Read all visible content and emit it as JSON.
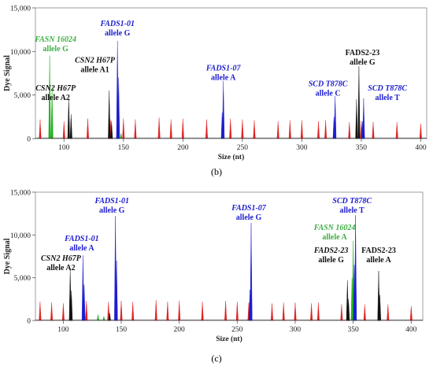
{
  "chart_data": [
    {
      "type": "line",
      "panel_label": "(b)",
      "xlabel": "Size (nt)",
      "ylabel": "Dye Signal",
      "xlim": [
        76,
        405
      ],
      "ylim": [
        0,
        15000
      ],
      "x_ticks": [
        100,
        150,
        200,
        250,
        300,
        350,
        400
      ],
      "y_ticks": [
        0,
        5000,
        10000,
        15000
      ],
      "y_tick_labels": [
        "0",
        "5,000",
        "10,000",
        "15,000"
      ],
      "grid": false,
      "series": [
        {
          "color": "#e02020",
          "width": 1.1,
          "peaks": [
            {
              "x": 80,
              "y": 2200
            },
            {
              "x": 90,
              "y": 2100
            },
            {
              "x": 100,
              "y": 2000
            },
            {
              "x": 120,
              "y": 2300
            },
            {
              "x": 139,
              "y": 2200
            },
            {
              "x": 150,
              "y": 2300
            },
            {
              "x": 160,
              "y": 2200
            },
            {
              "x": 180,
              "y": 2400
            },
            {
              "x": 190,
              "y": 2200
            },
            {
              "x": 200,
              "y": 2300
            },
            {
              "x": 220,
              "y": 2200
            },
            {
              "x": 240,
              "y": 2300
            },
            {
              "x": 250,
              "y": 2200
            },
            {
              "x": 260,
              "y": 2100
            },
            {
              "x": 280,
              "y": 2000
            },
            {
              "x": 290,
              "y": 2100
            },
            {
              "x": 300,
              "y": 2100
            },
            {
              "x": 314,
              "y": 2000
            },
            {
              "x": 320,
              "y": 2100
            },
            {
              "x": 340,
              "y": 1900
            },
            {
              "x": 350,
              "y": 2000
            },
            {
              "x": 360,
              "y": 1900
            },
            {
              "x": 380,
              "y": 1900
            },
            {
              "x": 400,
              "y": 1700
            }
          ]
        },
        {
          "color": "#22b022",
          "width": 1.4,
          "peaks": [
            {
              "x": 88,
              "y": 9500
            },
            {
              "x": 90,
              "y": 6000
            },
            {
              "x": 148,
              "y": 600
            }
          ]
        },
        {
          "color": "#111111",
          "width": 1.3,
          "peaks": [
            {
              "x": 104,
              "y": 4600
            },
            {
              "x": 106,
              "y": 2800
            },
            {
              "x": 138,
              "y": 5500
            },
            {
              "x": 140,
              "y": 2000
            },
            {
              "x": 145,
              "y": 1200
            },
            {
              "x": 348,
              "y": 8300
            },
            {
              "x": 346,
              "y": 4500
            }
          ]
        },
        {
          "color": "#1c1cd0",
          "width": 1.4,
          "peaks": [
            {
              "x": 145,
              "y": 11200
            },
            {
              "x": 146,
              "y": 7000
            },
            {
              "x": 234,
              "y": 6600
            },
            {
              "x": 233,
              "y": 3000
            },
            {
              "x": 328,
              "y": 4900
            },
            {
              "x": 327,
              "y": 2500
            },
            {
              "x": 352,
              "y": 4600
            },
            {
              "x": 351,
              "y": 2000
            }
          ]
        }
      ],
      "annotations": [
        {
          "lines": [
            "FASN 16024",
            "allele G"
          ],
          "italic_first": true,
          "color": "#3cb043",
          "x": 93,
          "y": 11100
        },
        {
          "lines": [
            "CSN2 H67P",
            "allele A1"
          ],
          "italic_first": true,
          "color": "#111111",
          "x": 126,
          "y": 8700
        },
        {
          "lines": [
            "CSN2 H67P",
            "allele A2"
          ],
          "italic_first": true,
          "color": "#111111",
          "x": 93,
          "y": 5500
        },
        {
          "lines": [
            "FADS1-01",
            "allele G"
          ],
          "italic_first": true,
          "color": "#1c1cd0",
          "x": 145,
          "y": 12900
        },
        {
          "lines": [
            "FADS1-07",
            "allele A"
          ],
          "italic_first": true,
          "color": "#1c1cd0",
          "x": 234,
          "y": 7800
        },
        {
          "lines": [
            "SCD T878C",
            "allele C"
          ],
          "italic_first": true,
          "color": "#1c1cd0",
          "x": 322,
          "y": 6000
        },
        {
          "lines": [
            "FADS2-23",
            "allele G"
          ],
          "italic_first": false,
          "color": "#111111",
          "x": 351,
          "y": 9600
        },
        {
          "lines": [
            "SCD T878C",
            "allele T"
          ],
          "italic_first": true,
          "color": "#1c1cd0",
          "x": 372,
          "y": 5500
        }
      ]
    },
    {
      "type": "line",
      "panel_label": "(c)",
      "xlabel": "Size (nt)",
      "ylabel": "Dye Signal",
      "xlim": [
        76,
        410
      ],
      "ylim": [
        0,
        15000
      ],
      "x_ticks": [
        100,
        150,
        200,
        250,
        300,
        350,
        400
      ],
      "y_ticks": [
        0,
        5000,
        10000,
        15000
      ],
      "y_tick_labels": [
        "0",
        "5,000",
        "10,000",
        "15,000"
      ],
      "grid": false,
      "series": [
        {
          "color": "#e02020",
          "width": 1.1,
          "peaks": [
            {
              "x": 80,
              "y": 2200
            },
            {
              "x": 90,
              "y": 2100
            },
            {
              "x": 100,
              "y": 2000
            },
            {
              "x": 120,
              "y": 2300
            },
            {
              "x": 139,
              "y": 2200
            },
            {
              "x": 150,
              "y": 2300
            },
            {
              "x": 160,
              "y": 2200
            },
            {
              "x": 180,
              "y": 2400
            },
            {
              "x": 190,
              "y": 2200
            },
            {
              "x": 200,
              "y": 2300
            },
            {
              "x": 220,
              "y": 2200
            },
            {
              "x": 240,
              "y": 2300
            },
            {
              "x": 250,
              "y": 2200
            },
            {
              "x": 260,
              "y": 2100
            },
            {
              "x": 280,
              "y": 2000
            },
            {
              "x": 290,
              "y": 2100
            },
            {
              "x": 300,
              "y": 2100
            },
            {
              "x": 314,
              "y": 2000
            },
            {
              "x": 320,
              "y": 2100
            },
            {
              "x": 340,
              "y": 1900
            },
            {
              "x": 350,
              "y": 2000
            },
            {
              "x": 360,
              "y": 1900
            },
            {
              "x": 380,
              "y": 1900
            },
            {
              "x": 400,
              "y": 1700
            }
          ]
        },
        {
          "color": "#22b022",
          "width": 1.4,
          "peaks": [
            {
              "x": 350,
              "y": 9300
            },
            {
              "x": 349,
              "y": 5000
            },
            {
              "x": 130,
              "y": 700
            },
            {
              "x": 135,
              "y": 500
            }
          ]
        },
        {
          "color": "#111111",
          "width": 1.3,
          "peaks": [
            {
              "x": 106,
              "y": 6000
            },
            {
              "x": 107,
              "y": 3500
            },
            {
              "x": 345,
              "y": 4700
            },
            {
              "x": 346,
              "y": 2500
            },
            {
              "x": 372,
              "y": 5800
            },
            {
              "x": 373,
              "y": 3000
            },
            {
              "x": 140,
              "y": 900
            }
          ]
        },
        {
          "color": "#1c1cd0",
          "width": 1.4,
          "peaks": [
            {
              "x": 117,
              "y": 7600
            },
            {
              "x": 118,
              "y": 4200
            },
            {
              "x": 145,
              "y": 12200
            },
            {
              "x": 146,
              "y": 7000
            },
            {
              "x": 262,
              "y": 11400
            },
            {
              "x": 261,
              "y": 3600
            },
            {
              "x": 352,
              "y": 12300
            },
            {
              "x": 351,
              "y": 6500
            }
          ]
        }
      ],
      "annotations": [
        {
          "lines": [
            "CSN2 H67P",
            "allele A2"
          ],
          "italic_first": true,
          "color": "#111111",
          "x": 98,
          "y": 7000
        },
        {
          "lines": [
            "FADS1-01",
            "allele A"
          ],
          "italic_first": true,
          "color": "#1c1cd0",
          "x": 116,
          "y": 9300
        },
        {
          "lines": [
            "FADS1-01",
            "allele G"
          ],
          "italic_first": true,
          "color": "#1c1cd0",
          "x": 142,
          "y": 13700
        },
        {
          "lines": [
            "FADS1-07",
            "allele G"
          ],
          "italic_first": true,
          "color": "#1c1cd0",
          "x": 260,
          "y": 12900
        },
        {
          "lines": [
            "SCD T878C",
            "allele T"
          ],
          "italic_first": true,
          "color": "#1c1cd0",
          "x": 349,
          "y": 13700
        },
        {
          "lines": [
            "FASN 16024",
            "allele A"
          ],
          "italic_first": true,
          "color": "#3cb043",
          "x": 334,
          "y": 10600
        },
        {
          "lines": [
            "FADS2-23",
            "allele G"
          ],
          "italic_first": true,
          "color": "#111111",
          "x": 331,
          "y": 7900
        },
        {
          "lines": [
            "FADS2-23",
            "allele A"
          ],
          "italic_first": false,
          "color": "#111111",
          "x": 372,
          "y": 7900
        }
      ]
    }
  ]
}
